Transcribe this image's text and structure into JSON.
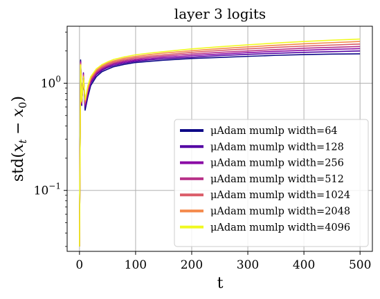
{
  "chart_data": {
    "type": "line",
    "title": "layer 3 logits",
    "xlabel": "t",
    "ylabel": "std(x_t − x_0)",
    "xlim": [
      -22,
      522
    ],
    "ylim": [
      0.027,
      3.4
    ],
    "yscale": "log",
    "grid": true,
    "legend_position": "lower-right",
    "x_ticks": [
      0,
      100,
      200,
      300,
      400,
      500
    ],
    "x_tick_labels": [
      "0",
      "100",
      "200",
      "300",
      "400",
      "500"
    ],
    "y_ticks": [
      0.1,
      1
    ],
    "y_tick_labels": [
      {
        "base": "10",
        "exp": "−1"
      },
      {
        "base": "10",
        "exp": "0"
      }
    ],
    "x": [
      0,
      2,
      4,
      7,
      10,
      15,
      20,
      30,
      40,
      50,
      60,
      80,
      100,
      125,
      150,
      175,
      200,
      250,
      300,
      350,
      400,
      450,
      500
    ],
    "series": [
      {
        "name": "μAdam mumlp width=64",
        "color": "#0d0887",
        "values": [
          0.03,
          1.65,
          0.62,
          1.2,
          0.56,
          0.75,
          0.95,
          1.15,
          1.28,
          1.35,
          1.42,
          1.5,
          1.56,
          1.6,
          1.64,
          1.67,
          1.7,
          1.74,
          1.78,
          1.82,
          1.85,
          1.87,
          1.88
        ]
      },
      {
        "name": "μAdam mumlp width=128",
        "color": "#5302a3",
        "values": [
          0.03,
          1.6,
          0.63,
          1.25,
          0.6,
          0.8,
          1.0,
          1.2,
          1.32,
          1.4,
          1.46,
          1.54,
          1.6,
          1.65,
          1.69,
          1.72,
          1.75,
          1.81,
          1.86,
          1.9,
          1.94,
          1.97,
          2.0
        ]
      },
      {
        "name": "μAdam mumlp width=256",
        "color": "#8b0aa5",
        "values": [
          0.03,
          1.58,
          0.64,
          1.22,
          0.62,
          0.83,
          1.03,
          1.23,
          1.35,
          1.43,
          1.5,
          1.58,
          1.64,
          1.69,
          1.74,
          1.77,
          1.81,
          1.87,
          1.93,
          1.98,
          2.03,
          2.07,
          2.1
        ]
      },
      {
        "name": "μAdam mumlp width=512",
        "color": "#b83289",
        "values": [
          0.03,
          1.55,
          0.65,
          1.2,
          0.64,
          0.86,
          1.06,
          1.26,
          1.38,
          1.46,
          1.53,
          1.62,
          1.68,
          1.74,
          1.79,
          1.83,
          1.87,
          1.94,
          2.0,
          2.06,
          2.12,
          2.16,
          2.2
        ]
      },
      {
        "name": "μAdam mumlp width=1024",
        "color": "#db5c68",
        "values": [
          0.03,
          1.52,
          0.66,
          1.18,
          0.66,
          0.89,
          1.09,
          1.29,
          1.41,
          1.5,
          1.57,
          1.66,
          1.73,
          1.79,
          1.84,
          1.89,
          1.94,
          2.02,
          2.09,
          2.16,
          2.22,
          2.27,
          2.32
        ]
      },
      {
        "name": "μAdam mumlp width=2048",
        "color": "#f48849",
        "values": [
          0.03,
          1.5,
          0.67,
          1.16,
          0.68,
          0.92,
          1.12,
          1.32,
          1.45,
          1.54,
          1.61,
          1.71,
          1.78,
          1.85,
          1.91,
          1.96,
          2.01,
          2.1,
          2.18,
          2.26,
          2.33,
          2.39,
          2.45
        ]
      },
      {
        "name": "μAdam mumlp width=4096",
        "color": "#f0f921",
        "values": [
          0.03,
          1.48,
          0.68,
          1.14,
          0.7,
          0.95,
          1.15,
          1.36,
          1.49,
          1.58,
          1.66,
          1.76,
          1.84,
          1.91,
          1.97,
          2.03,
          2.09,
          2.19,
          2.28,
          2.37,
          2.45,
          2.52,
          2.58
        ]
      }
    ]
  }
}
